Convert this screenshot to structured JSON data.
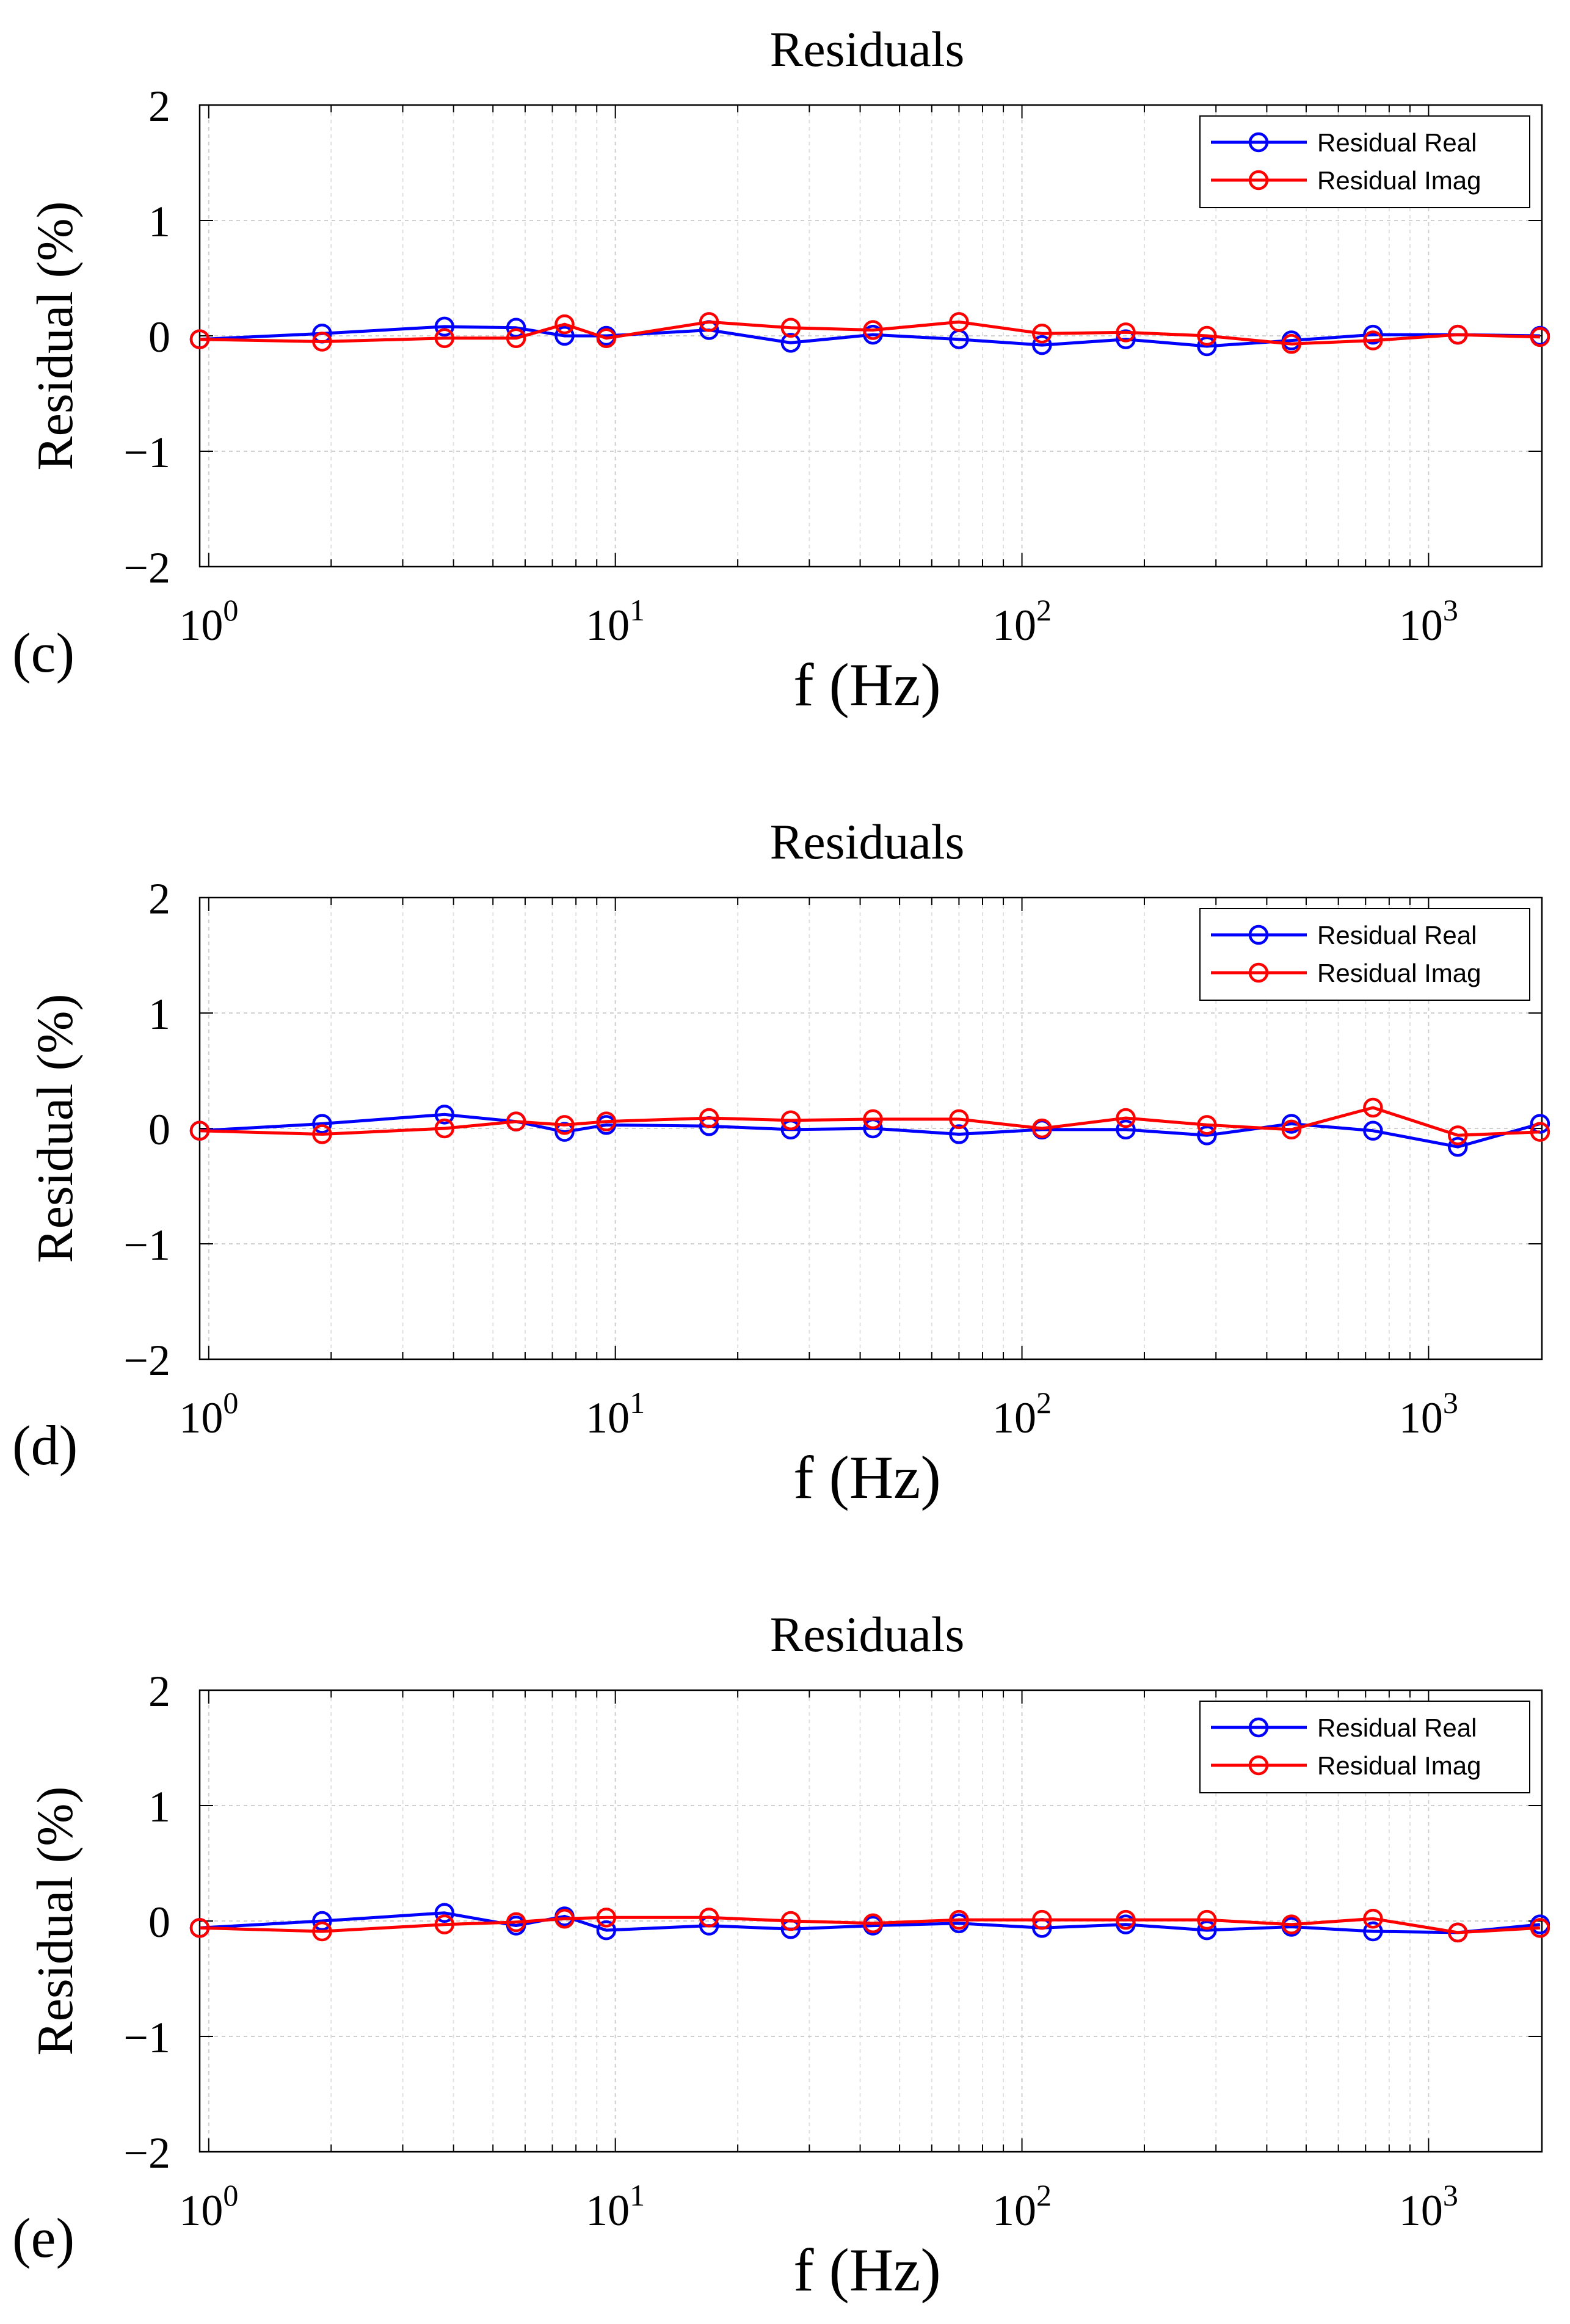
{
  "chart_data": [
    {
      "type": "line",
      "panel_label": "(c)",
      "title": "Residuals",
      "xlabel": "f (Hz)",
      "ylabel": "Residual  (%)",
      "xscale": "log",
      "xlim": [
        0.95,
        1900
      ],
      "ylim": [
        -2,
        2
      ],
      "grid": true,
      "legend_position": "top-right",
      "x_ticks": [
        {
          "base": "10",
          "exp": "0",
          "value": 1
        },
        {
          "base": "10",
          "exp": "1",
          "value": 10
        },
        {
          "base": "10",
          "exp": "2",
          "value": 100
        },
        {
          "base": "10",
          "exp": "3",
          "value": 1000
        }
      ],
      "y_ticks": [
        {
          "label": "2",
          "value": 2
        },
        {
          "label": "1",
          "value": 1
        },
        {
          "label": "0",
          "value": 0
        },
        {
          "label": "−1",
          "value": -1
        },
        {
          "label": "−2",
          "value": -2
        }
      ],
      "series": [
        {
          "name": "Residual Real",
          "color": "#0000ff",
          "x": [
            0.95,
            1.9,
            3.8,
            5.7,
            7.5,
            9.5,
            17,
            27,
            43,
            70,
            112,
            180,
            285,
            460,
            730,
            1180,
            1880
          ],
          "y": [
            -0.03,
            0.02,
            0.08,
            0.07,
            0.0,
            0.0,
            0.05,
            -0.06,
            0.01,
            -0.03,
            -0.08,
            -0.03,
            -0.09,
            -0.04,
            0.01,
            0.01,
            0.0
          ]
        },
        {
          "name": "Residual Imag",
          "color": "#ff0000",
          "x": [
            0.95,
            1.9,
            3.8,
            5.7,
            7.5,
            9.5,
            17,
            27,
            43,
            70,
            112,
            180,
            285,
            460,
            730,
            1180,
            1880
          ],
          "y": [
            -0.03,
            -0.05,
            -0.02,
            -0.02,
            0.1,
            -0.02,
            0.12,
            0.07,
            0.05,
            0.12,
            0.02,
            0.03,
            0.0,
            -0.07,
            -0.04,
            0.01,
            -0.01
          ]
        }
      ]
    },
    {
      "type": "line",
      "panel_label": "(d)",
      "title": "Residuals",
      "xlabel": "f (Hz)",
      "ylabel": "Residual  (%)",
      "xscale": "log",
      "xlim": [
        0.95,
        1900
      ],
      "ylim": [
        -2,
        2
      ],
      "grid": true,
      "legend_position": "top-right",
      "x_ticks": [
        {
          "base": "10",
          "exp": "0",
          "value": 1
        },
        {
          "base": "10",
          "exp": "1",
          "value": 10
        },
        {
          "base": "10",
          "exp": "2",
          "value": 100
        },
        {
          "base": "10",
          "exp": "3",
          "value": 1000
        }
      ],
      "y_ticks": [
        {
          "label": "2",
          "value": 2
        },
        {
          "label": "1",
          "value": 1
        },
        {
          "label": "0",
          "value": 0
        },
        {
          "label": "−1",
          "value": -1
        },
        {
          "label": "−2",
          "value": -2
        }
      ],
      "series": [
        {
          "name": "Residual Real",
          "color": "#0000ff",
          "x": [
            0.95,
            1.9,
            3.8,
            5.7,
            7.5,
            9.5,
            17,
            27,
            43,
            70,
            112,
            180,
            285,
            460,
            730,
            1180,
            1880
          ],
          "y": [
            -0.02,
            0.04,
            0.12,
            0.06,
            -0.03,
            0.03,
            0.02,
            -0.01,
            0.0,
            -0.05,
            -0.01,
            -0.01,
            -0.06,
            0.04,
            -0.02,
            -0.16,
            0.04
          ]
        },
        {
          "name": "Residual Imag",
          "color": "#ff0000",
          "x": [
            0.95,
            1.9,
            3.8,
            5.7,
            7.5,
            9.5,
            17,
            27,
            43,
            70,
            112,
            180,
            285,
            460,
            730,
            1180,
            1880
          ],
          "y": [
            -0.02,
            -0.05,
            0.0,
            0.06,
            0.03,
            0.06,
            0.09,
            0.07,
            0.08,
            0.08,
            0.0,
            0.09,
            0.03,
            -0.01,
            0.18,
            -0.06,
            -0.03
          ]
        }
      ]
    },
    {
      "type": "line",
      "panel_label": "(e)",
      "title": "Residuals",
      "xlabel": "f (Hz)",
      "ylabel": "Residual  (%)",
      "xscale": "log",
      "xlim": [
        0.95,
        1900
      ],
      "ylim": [
        -2,
        2
      ],
      "grid": true,
      "legend_position": "top-right",
      "x_ticks": [
        {
          "base": "10",
          "exp": "0",
          "value": 1
        },
        {
          "base": "10",
          "exp": "1",
          "value": 10
        },
        {
          "base": "10",
          "exp": "2",
          "value": 100
        },
        {
          "base": "10",
          "exp": "3",
          "value": 1000
        }
      ],
      "y_ticks": [
        {
          "label": "2",
          "value": 2
        },
        {
          "label": "1",
          "value": 1
        },
        {
          "label": "0",
          "value": 0
        },
        {
          "label": "−1",
          "value": -1
        },
        {
          "label": "−2",
          "value": -2
        }
      ],
      "series": [
        {
          "name": "Residual Real",
          "color": "#0000ff",
          "x": [
            0.95,
            1.9,
            3.8,
            5.7,
            7.5,
            9.5,
            17,
            27,
            43,
            70,
            112,
            180,
            285,
            460,
            730,
            1180,
            1880
          ],
          "y": [
            -0.06,
            0.0,
            0.07,
            -0.04,
            0.04,
            -0.08,
            -0.04,
            -0.07,
            -0.04,
            -0.02,
            -0.06,
            -0.03,
            -0.08,
            -0.05,
            -0.09,
            -0.1,
            -0.03
          ]
        },
        {
          "name": "Residual Imag",
          "color": "#ff0000",
          "x": [
            0.95,
            1.9,
            3.8,
            5.7,
            7.5,
            9.5,
            17,
            27,
            43,
            70,
            112,
            180,
            285,
            460,
            730,
            1180,
            1880
          ],
          "y": [
            -0.06,
            -0.09,
            -0.03,
            -0.01,
            0.02,
            0.03,
            0.03,
            0.0,
            -0.02,
            0.01,
            0.01,
            0.01,
            0.01,
            -0.03,
            0.02,
            -0.1,
            -0.06
          ]
        }
      ]
    }
  ]
}
